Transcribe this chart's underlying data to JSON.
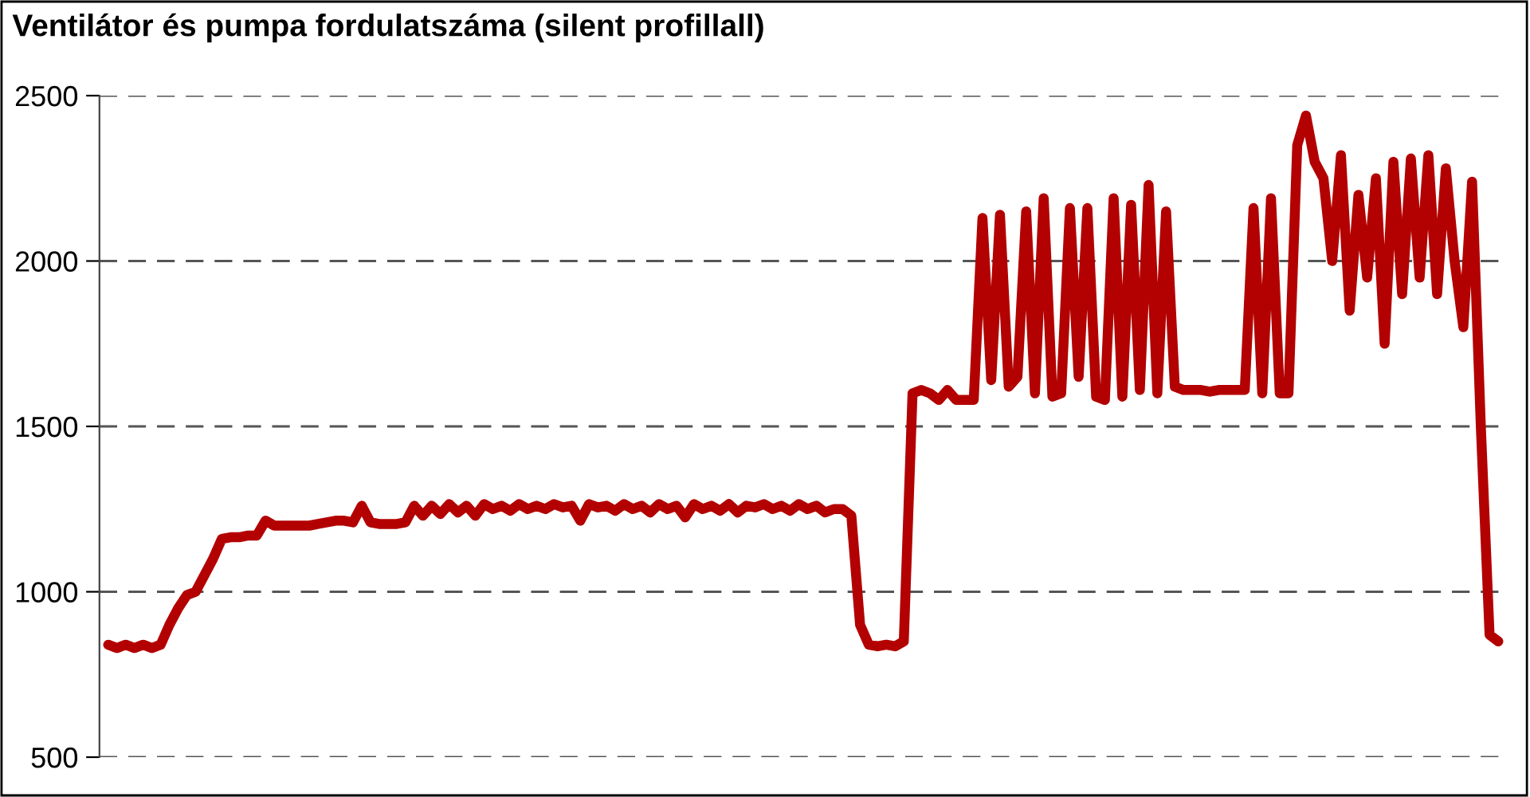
{
  "chart_data": {
    "type": "line",
    "title": "Ventilátor és pumpa fordulatszáma (silent profillall)",
    "categories": [
      null,
      null,
      null,
      null,
      null,
      null,
      null,
      null,
      null,
      null,
      null,
      null,
      null,
      null,
      null,
      null,
      null,
      null,
      null,
      null,
      null,
      null,
      null,
      null,
      null,
      null,
      null,
      null,
      null,
      null,
      null,
      null,
      null,
      null,
      null,
      null,
      null,
      null,
      null,
      null,
      null,
      null,
      null,
      null,
      null,
      null,
      null,
      null,
      null,
      null,
      null,
      null,
      null,
      null,
      null,
      null,
      null,
      null,
      null,
      null,
      null,
      null,
      null,
      null,
      null,
      null,
      null,
      null,
      null,
      null,
      null,
      null,
      null,
      null,
      null,
      null,
      null,
      null,
      null,
      null,
      null,
      null,
      null,
      null,
      null,
      null,
      null,
      null,
      null,
      null,
      null,
      null,
      null,
      null,
      null,
      null,
      null,
      null,
      null,
      null,
      null,
      null,
      null,
      null,
      null,
      null,
      null,
      null,
      null,
      null,
      null,
      null,
      null,
      null,
      null,
      null,
      null,
      null,
      null,
      null,
      null,
      null,
      null,
      null,
      null,
      null,
      null,
      null,
      null,
      null,
      null,
      null,
      null,
      null,
      null,
      null,
      null,
      null,
      null,
      null,
      null,
      null,
      null,
      null,
      null,
      null,
      null,
      null,
      null,
      null,
      null,
      null,
      null,
      null,
      null,
      null,
      null,
      null,
      null,
      null
    ],
    "series": [
      {
        "color": "#b30000",
        "values": [
          840,
          830,
          840,
          830,
          840,
          830,
          840,
          900,
          950,
          990,
          1000,
          1050,
          1100,
          1160,
          1165,
          1165,
          1170,
          1170,
          1215,
          1200,
          1200,
          1200,
          1200,
          1200,
          1205,
          1210,
          1215,
          1215,
          1210,
          1260,
          1210,
          1205,
          1205,
          1205,
          1210,
          1260,
          1230,
          1260,
          1235,
          1265,
          1240,
          1260,
          1230,
          1265,
          1250,
          1260,
          1245,
          1265,
          1250,
          1260,
          1250,
          1265,
          1255,
          1260,
          1215,
          1265,
          1255,
          1260,
          1245,
          1265,
          1250,
          1260,
          1240,
          1265,
          1250,
          1260,
          1225,
          1265,
          1250,
          1260,
          1245,
          1265,
          1240,
          1260,
          1255,
          1265,
          1250,
          1260,
          1245,
          1265,
          1250,
          1260,
          1240,
          1250,
          1250,
          1230,
          900,
          840,
          835,
          840,
          835,
          850,
          1600,
          1610,
          1600,
          1580,
          1610,
          1580,
          1580,
          1580,
          2130,
          1640,
          2140,
          1620,
          1650,
          2150,
          1600,
          2190,
          1590,
          1600,
          2160,
          1650,
          2160,
          1590,
          1580,
          2190,
          1590,
          2170,
          1610,
          2230,
          1600,
          2150,
          1620,
          1610,
          1610,
          1610,
          1605,
          1610,
          1610,
          1610,
          1610,
          2160,
          1600,
          2190,
          1600,
          1600,
          2350,
          2440,
          2300,
          2250,
          2000,
          2320,
          1850,
          2200,
          1950,
          2250,
          1750,
          2300,
          1900,
          2310,
          1950,
          2320,
          1900,
          2280,
          2000,
          1800,
          2240,
          1500,
          870,
          850
        ]
      }
    ],
    "ylim": [
      500,
      2500
    ],
    "yticks": [
      500,
      1000,
      1500,
      2000,
      2500
    ],
    "grid": "y",
    "tick_labels": "y",
    "line_style": "solid",
    "marker": "none"
  }
}
